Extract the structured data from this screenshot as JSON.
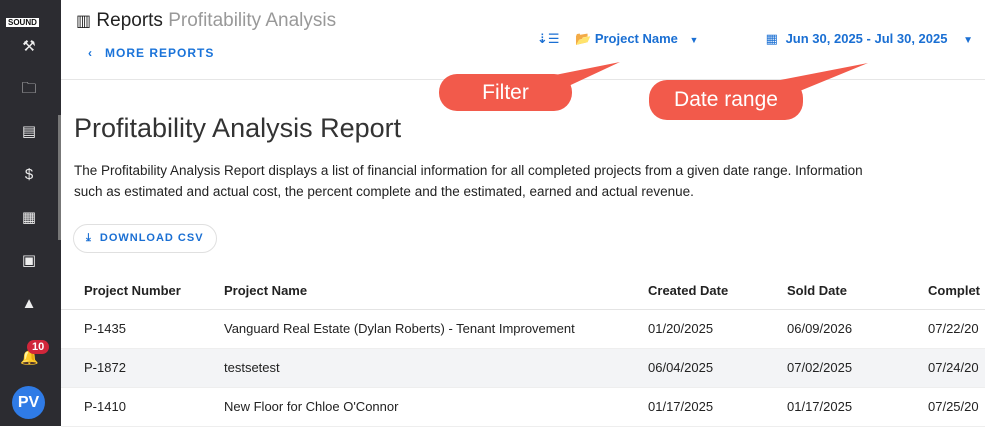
{
  "sidebar": {
    "logo": "SOUND CONSTRUCTION",
    "notification_count": "10",
    "avatar_initials": "PV"
  },
  "header": {
    "section": "Reports",
    "title": "Profitability Analysis",
    "back_label": "MORE REPORTS"
  },
  "toolbar": {
    "filter_label": "Project Name",
    "date_range": "Jun 30, 2025 - Jul 30, 2025"
  },
  "callouts": {
    "filter": "Filter",
    "date_range": "Date range"
  },
  "main": {
    "title": "Profitability Analysis Report",
    "description": "The Profitability Analysis Report displays a list of financial information for all completed projects from a given date range. Information such as estimated and actual cost, the percent complete and the estimated, earned and actual revenue.",
    "download_label": "DOWNLOAD CSV"
  },
  "table": {
    "columns": [
      "Project Number",
      "Project Name",
      "Created Date",
      "Sold Date",
      "Complet"
    ],
    "rows": [
      [
        "P-1435",
        "Vanguard Real Estate (Dylan Roberts) - Tenant Improvement",
        "01/20/2025",
        "06/09/2026",
        "07/22/20"
      ],
      [
        "P-1872",
        "testsetest",
        "06/04/2025",
        "07/02/2025",
        "07/24/20"
      ],
      [
        "P-1410",
        "New Floor for Chloe O'Connor",
        "01/17/2025",
        "01/17/2025",
        "07/25/20"
      ]
    ]
  },
  "colors": {
    "accent": "#1a6fd3",
    "sidebar": "#2c2c31",
    "callout": "#f25a4b",
    "badge": "#d0263a"
  }
}
